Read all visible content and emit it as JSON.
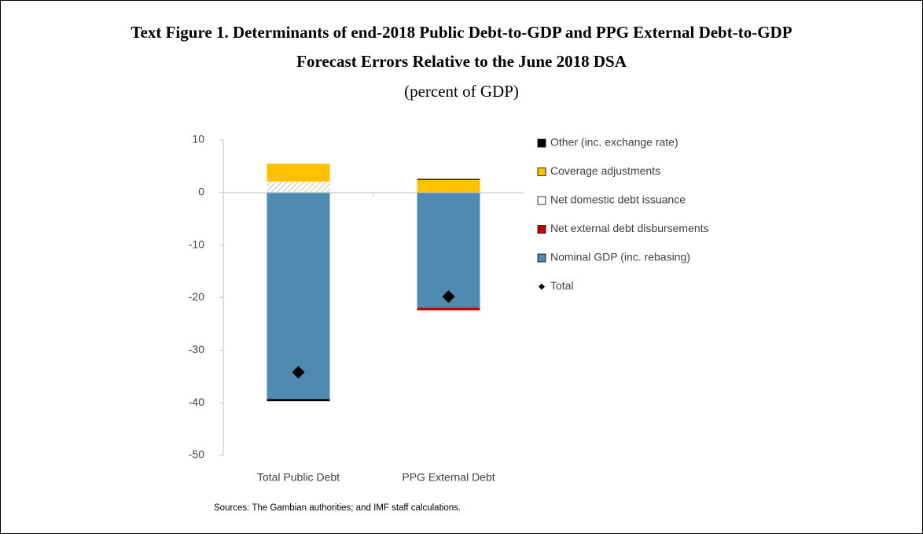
{
  "chart_data": {
    "type": "stacked-bar",
    "title": [
      "Text Figure 1. Determinants of end-2018 Public Debt-to-GDP and PPG External Debt-to-GDP",
      "Forecast Errors Relative to the June 2018 DSA"
    ],
    "subtitle": "(percent of GDP)",
    "categories": [
      "Total Public Debt",
      "PPG External Debt"
    ],
    "series": [
      {
        "name": "Other (inc. exchange rate)",
        "color": "#000000",
        "values": [
          -0.4,
          0.2
        ]
      },
      {
        "name": "Coverage adjustments",
        "color": "#ffc000",
        "values": [
          3.4,
          2.4
        ]
      },
      {
        "name": "Net domestic debt issuance",
        "color": "#e4ead8",
        "values": [
          2.1,
          0
        ]
      },
      {
        "name": "Net external debt disbursements",
        "color": "#c00000",
        "values": [
          0,
          -0.5
        ]
      },
      {
        "name": "Nominal GDP (inc. rebasing)",
        "color": "#4f8bb0",
        "values": [
          -39.3,
          -21.9
        ]
      }
    ],
    "total": {
      "name": "Total",
      "color": "#000000",
      "values": [
        -34.2,
        -19.8
      ]
    },
    "ylim": [
      -50,
      10
    ],
    "yticks": [
      10,
      0,
      -10,
      -20,
      -30,
      -40,
      -50
    ],
    "source": "Sources: The Gambian authorities; and IMF staff calculations."
  }
}
